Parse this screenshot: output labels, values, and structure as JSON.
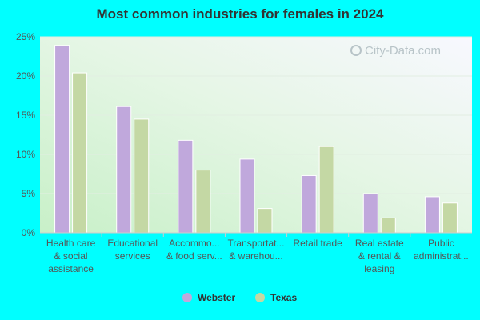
{
  "chart_data": {
    "type": "bar",
    "title": "Most common industries for females in 2024",
    "categories": [
      [
        "Health care",
        "& social",
        "assistance"
      ],
      [
        "Educational",
        "services"
      ],
      [
        "Accommo...",
        "& food serv..."
      ],
      [
        "Transportat...",
        "& warehou..."
      ],
      [
        "Retail trade"
      ],
      [
        "Real estate",
        "& rental &",
        "leasing"
      ],
      [
        "Public",
        "administrat..."
      ]
    ],
    "series": [
      {
        "name": "Webster",
        "color": "#c0a8dc",
        "values": [
          23.9,
          16.1,
          11.8,
          9.4,
          7.3,
          5.0,
          4.6
        ]
      },
      {
        "name": "Texas",
        "color": "#c4d8a4",
        "values": [
          20.4,
          14.5,
          8.0,
          3.1,
          11.0,
          1.9,
          3.8
        ]
      }
    ],
    "y_ticks": [
      "0%",
      "5%",
      "10%",
      "15%",
      "20%",
      "25%"
    ],
    "ylim": [
      0,
      25
    ],
    "grid": true,
    "legend_position": "bottom-center",
    "xlabel": "",
    "ylabel": ""
  },
  "watermark": {
    "text": "City-Data.com",
    "icon": "magnifier-icon"
  }
}
